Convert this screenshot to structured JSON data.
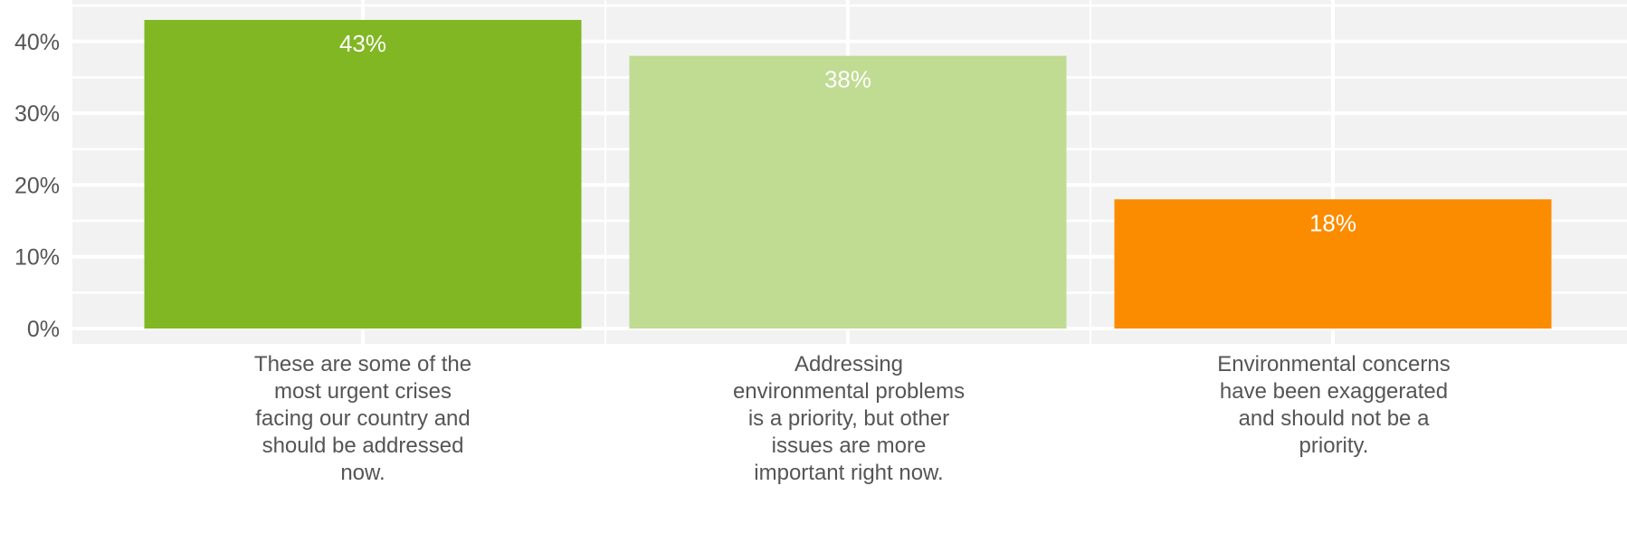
{
  "chart_data": {
    "type": "bar",
    "categories": [
      "These are some of the most urgent crises facing our country and should be addressed now.",
      "Addressing environmental problems is a priority, but other issues are more important right now.",
      "Environmental concerns have been exaggerated and should not be a priority."
    ],
    "values": [
      43,
      38,
      18
    ],
    "data_labels": [
      "43%",
      "38%",
      "18%"
    ],
    "colors": [
      "#80b723",
      "#c0db92",
      "#fb8c00"
    ],
    "y_ticks": [
      "0%",
      "10%",
      "20%",
      "30%",
      "40%"
    ],
    "ylim": [
      0,
      45
    ],
    "grid": true,
    "plot_background": "#f2f2f2",
    "grid_color": "#ffffff"
  }
}
